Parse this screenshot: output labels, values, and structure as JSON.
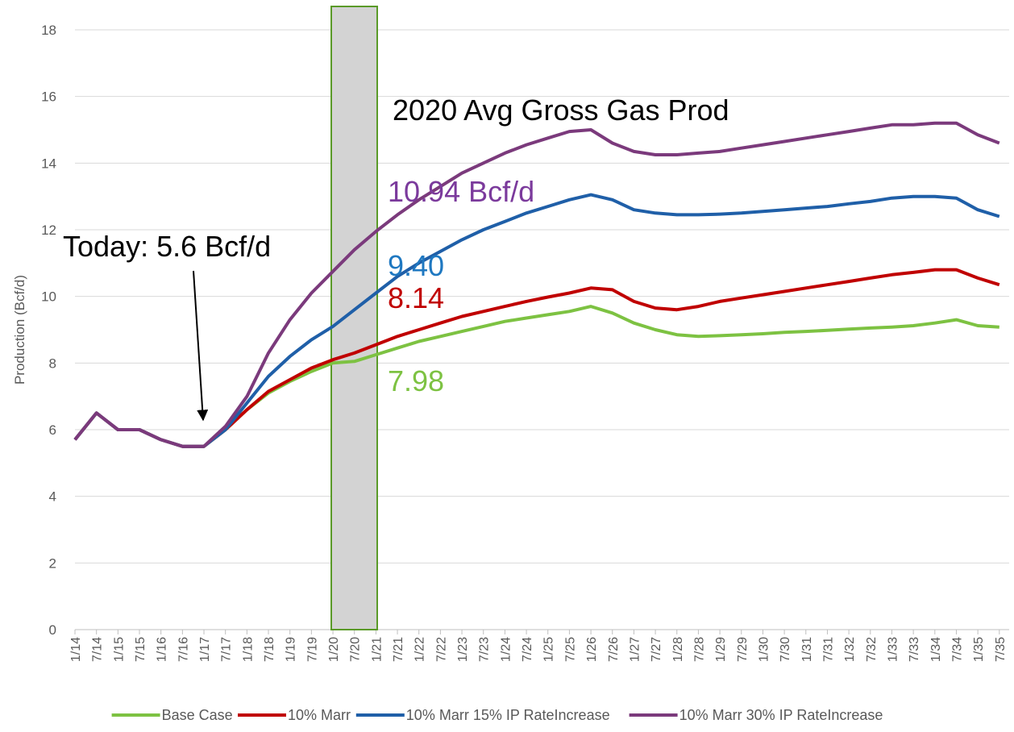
{
  "chart_data": {
    "type": "line",
    "y_label": "Production (Bcf/d)",
    "categories": [
      "1/14",
      "7/14",
      "1/15",
      "7/15",
      "1/16",
      "7/16",
      "1/17",
      "7/17",
      "1/18",
      "7/18",
      "1/19",
      "7/19",
      "1/20",
      "7/20",
      "1/21",
      "7/21",
      "1/22",
      "7/22",
      "1/23",
      "7/23",
      "1/24",
      "7/24",
      "1/25",
      "7/25",
      "1/26",
      "7/26",
      "1/27",
      "7/27",
      "1/28",
      "7/28",
      "1/29",
      "7/29",
      "1/30",
      "7/30",
      "1/31",
      "7/31",
      "1/32",
      "7/32",
      "1/33",
      "7/33",
      "1/34",
      "7/34",
      "1/35",
      "7/35"
    ],
    "series": [
      {
        "name": "Base Case",
        "color": "#7dc242",
        "values": [
          5.7,
          6.5,
          6.0,
          6.0,
          5.7,
          5.5,
          5.5,
          6.0,
          6.6,
          7.1,
          7.45,
          7.75,
          8.0,
          8.05,
          8.25,
          8.45,
          8.65,
          8.8,
          8.95,
          9.1,
          9.25,
          9.35,
          9.45,
          9.55,
          9.7,
          9.5,
          9.2,
          9.0,
          8.85,
          8.8,
          8.82,
          8.85,
          8.88,
          8.92,
          8.95,
          8.98,
          9.02,
          9.05,
          9.08,
          9.12,
          9.2,
          9.3,
          9.12,
          9.08
        ]
      },
      {
        "name": "10% Marr",
        "color": "#c00000",
        "values": [
          5.7,
          6.5,
          6.0,
          6.0,
          5.7,
          5.5,
          5.5,
          6.0,
          6.6,
          7.15,
          7.5,
          7.85,
          8.1,
          8.3,
          8.55,
          8.8,
          9.0,
          9.2,
          9.4,
          9.55,
          9.7,
          9.85,
          9.98,
          10.1,
          10.25,
          10.2,
          9.85,
          9.65,
          9.6,
          9.7,
          9.85,
          9.95,
          10.05,
          10.15,
          10.25,
          10.35,
          10.45,
          10.55,
          10.65,
          10.72,
          10.8,
          10.8,
          10.55,
          10.35
        ]
      },
      {
        "name": "10% Marr 15% IP RateIncrease",
        "color": "#1f5fa8",
        "values": [
          5.7,
          6.5,
          6.0,
          6.0,
          5.7,
          5.5,
          5.5,
          6.0,
          6.8,
          7.6,
          8.2,
          8.7,
          9.1,
          9.6,
          10.1,
          10.6,
          11.0,
          11.35,
          11.7,
          12.0,
          12.25,
          12.5,
          12.7,
          12.9,
          13.05,
          12.9,
          12.6,
          12.5,
          12.45,
          12.45,
          12.47,
          12.5,
          12.55,
          12.6,
          12.65,
          12.7,
          12.78,
          12.85,
          12.95,
          13.0,
          13.0,
          12.95,
          12.6,
          12.4
        ]
      },
      {
        "name": "10% Marr 30% IP RateIncrease",
        "color": "#7b3a7c",
        "values": [
          5.7,
          6.5,
          6.0,
          6.0,
          5.7,
          5.5,
          5.5,
          6.1,
          7.0,
          8.3,
          9.3,
          10.1,
          10.75,
          11.4,
          11.95,
          12.45,
          12.9,
          13.3,
          13.7,
          14.0,
          14.3,
          14.55,
          14.75,
          14.95,
          15.0,
          14.6,
          14.35,
          14.25,
          14.25,
          14.3,
          14.35,
          14.45,
          14.55,
          14.65,
          14.75,
          14.85,
          14.95,
          15.05,
          15.15,
          15.15,
          15.2,
          15.2,
          14.85,
          14.6
        ]
      }
    ],
    "ylim": [
      0,
      18
    ],
    "yticks": [
      0,
      2,
      4,
      6,
      8,
      10,
      12,
      14,
      16,
      18
    ],
    "grid": true,
    "annotations": [
      {
        "text": "2020 Avg Gross Gas Prod",
        "color": "#000000"
      },
      {
        "text": "10.94 Bcf/d",
        "color": "#7b3a9c"
      },
      {
        "text": "9.40",
        "color": "#1f78c1"
      },
      {
        "text": "8.14",
        "color": "#c00000"
      },
      {
        "text": "7.98",
        "color": "#7dc242"
      },
      {
        "text": "Today: 5.6 Bcf/d",
        "color": "#000000"
      }
    ],
    "legend": "bottom"
  }
}
